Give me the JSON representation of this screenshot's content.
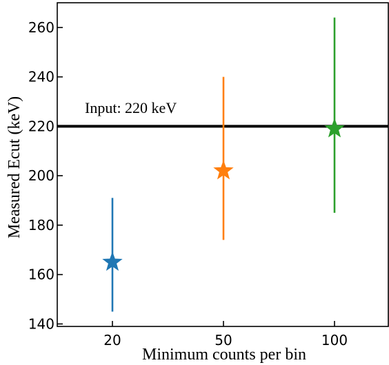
{
  "chart_data": {
    "type": "scatter",
    "xlabel": "Minimum counts per bin",
    "ylabel": "Measured Ecut (keV)",
    "categories": [
      "20",
      "50",
      "100"
    ],
    "points": [
      {
        "x": "20",
        "y": 165,
        "err_low": 145,
        "err_high": 191,
        "color": "#1f77b4"
      },
      {
        "x": "50",
        "y": 202,
        "err_low": 174,
        "err_high": 240,
        "color": "#ff7f0e"
      },
      {
        "x": "100",
        "y": 219,
        "err_low": 185,
        "err_high": 264,
        "color": "#2ca02c"
      }
    ],
    "yticks": [
      140,
      160,
      180,
      200,
      220,
      240,
      260
    ],
    "ylim": [
      139,
      270
    ],
    "hline": {
      "y": 220,
      "label": "Input: 220 keV",
      "color": "#000000"
    },
    "marker": "star",
    "grid": false,
    "legend": "none"
  }
}
